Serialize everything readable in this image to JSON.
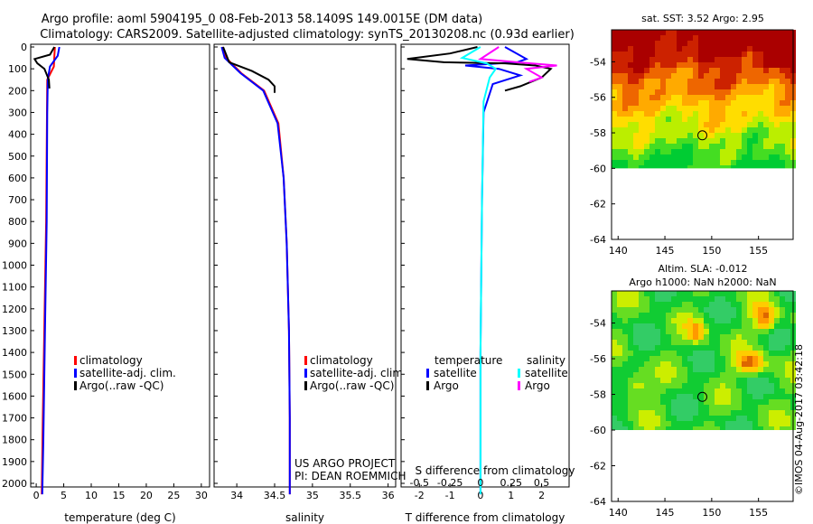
{
  "title_line1": "Argo profile: aoml 5904195_0 08-Feb-2013 58.1409S 149.0015E (DM data)",
  "title_line2": "Climatology: CARS2009. Satellite-adjusted climatology: synTS_20130208.nc (0.93d earlier)",
  "credit": "US ARGO PROJECT",
  "pi": "PI: DEAN ROEMMICH",
  "watermark": "©IMOS 04-Aug-2017 03:42:18",
  "colors": {
    "climatology": "#ff0000",
    "satellite": "#0000ff",
    "argo": "#000000",
    "sat_salinity": "#00ffff",
    "argo_salinity": "#ff00ff"
  },
  "chart_data": [
    {
      "type": "line",
      "id": "temp",
      "xlabel": "temperature (deg C)",
      "xlim": [
        -1,
        31.5
      ],
      "xticks": [
        "0",
        "5",
        "10",
        "15",
        "20",
        "25",
        "30"
      ],
      "xtick_values": [
        0,
        5,
        10,
        15,
        20,
        25,
        30
      ],
      "ylim": [
        2060,
        0
      ],
      "yticks": [
        0,
        100,
        200,
        300,
        400,
        500,
        600,
        700,
        800,
        900,
        1000,
        1100,
        1200,
        1300,
        1400,
        1500,
        1600,
        1700,
        1800,
        1900,
        2000
      ],
      "legend": [
        "climatology",
        "satellite-adj. clim.",
        "Argo(..raw -QC)"
      ],
      "series": [
        {
          "name": "climatology",
          "color": "#ff0000",
          "x": [
            3.4,
            3.3,
            3.2,
            2.0,
            1.8,
            1.2,
            1.0
          ],
          "y": [
            0,
            40,
            90,
            150,
            800,
            1700,
            2050
          ]
        },
        {
          "name": "satellite-adj. clim.",
          "color": "#0000ff",
          "x": [
            4.2,
            3.9,
            2.5,
            2.1,
            2.0,
            1.9,
            1.6,
            1.3,
            1.1
          ],
          "y": [
            0,
            40,
            90,
            150,
            300,
            800,
            1300,
            1800,
            2050
          ]
        },
        {
          "name": "Argo(..raw -QC)",
          "color": "#000000",
          "x": [
            3.3,
            2.5,
            -0.3,
            0.2,
            1.5,
            2.3,
            2.4
          ],
          "y": [
            0,
            35,
            55,
            75,
            100,
            150,
            190
          ]
        }
      ]
    },
    {
      "type": "line",
      "id": "sal",
      "xlabel": "salinity",
      "xlim": [
        33.7,
        36.1
      ],
      "xticks": [
        "34",
        "34.5",
        "35",
        "35.5",
        "36"
      ],
      "xtick_values": [
        34,
        34.5,
        35,
        35.5,
        36
      ],
      "ylim": [
        2060,
        0
      ],
      "legend": [
        "climatology",
        "satellite-adj. clim.",
        "Argo(..raw -QC)"
      ],
      "series": [
        {
          "name": "climatology",
          "color": "#ff0000",
          "x": [
            33.81,
            33.86,
            34.06,
            34.36,
            34.55,
            34.62,
            34.66,
            34.69,
            34.7,
            34.7
          ],
          "y": [
            0,
            50,
            120,
            200,
            350,
            600,
            900,
            1300,
            1700,
            2050
          ]
        },
        {
          "name": "satellite-adj. clim.",
          "color": "#0000ff",
          "x": [
            33.8,
            33.84,
            34.05,
            34.35,
            34.54,
            34.62,
            34.66,
            34.69,
            34.7,
            34.7
          ],
          "y": [
            0,
            50,
            120,
            200,
            350,
            600,
            900,
            1300,
            1700,
            2050
          ]
        },
        {
          "name": "Argo(..raw -QC)",
          "color": "#000000",
          "x": [
            33.82,
            33.9,
            34.2,
            34.42,
            34.5,
            34.5
          ],
          "y": [
            0,
            70,
            110,
            150,
            180,
            210
          ]
        }
      ]
    },
    {
      "type": "line",
      "id": "diff",
      "xlabel": "T difference from climatology",
      "xlabel_top": "S difference from climatology",
      "xlim": [
        -2.6,
        2.9
      ],
      "xticks": [
        "-2",
        "-1",
        "0",
        "1",
        "2"
      ],
      "xtick_values": [
        -2,
        -1,
        0,
        1,
        2
      ],
      "sticks": [
        "-0.5",
        "-0.25",
        "0",
        "0.25",
        "0.5"
      ],
      "stick_values": [
        -2,
        -1,
        0,
        1,
        2
      ],
      "ylim": [
        2060,
        0
      ],
      "legend_temperature": "temperature",
      "legend_salinity": "salinity",
      "legend_items": [
        "satellite",
        "Argo",
        "satellite",
        "Argo"
      ],
      "series": [
        {
          "name": "temperature satellite",
          "color": "#0000ff",
          "x": [
            0.8,
            1.5,
            1.2,
            -0.5,
            0.6,
            1.3,
            0.4,
            0.1,
            0.05,
            0.0,
            0.0
          ],
          "y": [
            0,
            55,
            70,
            85,
            100,
            130,
            170,
            300,
            700,
            1400,
            2050
          ]
        },
        {
          "name": "temperature Argo",
          "color": "#000000",
          "x": [
            -0.1,
            -1.0,
            -2.4,
            -1.2,
            0.8,
            1.8,
            2.3,
            2.0,
            1.3,
            0.8
          ],
          "y": [
            0,
            30,
            55,
            70,
            75,
            85,
            100,
            140,
            180,
            200
          ]
        },
        {
          "name": "salinity satellite",
          "color": "#00ffff",
          "x": [
            0.0,
            -0.6,
            0.2,
            0.5,
            0.3,
            0.1,
            0.05,
            0.0,
            0.0
          ],
          "y": [
            0,
            50,
            75,
            100,
            140,
            250,
            700,
            1400,
            2050
          ]
        },
        {
          "name": "salinity Argo",
          "color": "#ff00ff",
          "x": [
            0.6,
            0.0,
            1.2,
            2.5,
            1.5,
            2.0,
            1.6
          ],
          "y": [
            0,
            55,
            70,
            85,
            100,
            140,
            160
          ]
        }
      ]
    },
    {
      "type": "heatmap",
      "id": "sst",
      "title": "sat. SST: 3.52 Argo: 2.95",
      "xticks": [
        "140",
        "145",
        "150",
        "155"
      ],
      "xtick_values": [
        140,
        145,
        150,
        155
      ],
      "yticks": [
        "-54",
        "-56",
        "-58",
        "-60",
        "-62",
        "-64"
      ],
      "ytick_values": [
        -54,
        -56,
        -58,
        -60,
        -62,
        -64
      ],
      "xlim": [
        139.3,
        158.7
      ],
      "ylim": [
        -64,
        -52.2
      ],
      "data_lat_min": -60,
      "marker": {
        "lon": 149.0,
        "lat": -58.14
      },
      "palette": [
        "#00cc33",
        "#44dd22",
        "#bbee00",
        "#ffdd00",
        "#ffaa00",
        "#ee6600",
        "#cc2200",
        "#aa0000"
      ]
    },
    {
      "type": "heatmap",
      "id": "sla",
      "title1": "Altim. SLA: -0.012",
      "title2": "Argo h1000: NaN h2000: NaN",
      "xticks": [
        "140",
        "145",
        "150",
        "155"
      ],
      "xtick_values": [
        140,
        145,
        150,
        155
      ],
      "yticks": [
        "-54",
        "-56",
        "-58",
        "-60",
        "-62",
        "-64"
      ],
      "ytick_values": [
        -54,
        -56,
        -58,
        -60,
        -62,
        -64
      ],
      "xlim": [
        139.3,
        158.7
      ],
      "ylim": [
        -64,
        -52.2
      ],
      "data_lat_min": -60,
      "marker": {
        "lon": 149.0,
        "lat": -58.14
      },
      "palette": [
        "#22bb99",
        "#33cc66",
        "#11cc33",
        "#66dd22",
        "#ccee00",
        "#ffcc00",
        "#ff9900",
        "#dd6600"
      ]
    }
  ]
}
